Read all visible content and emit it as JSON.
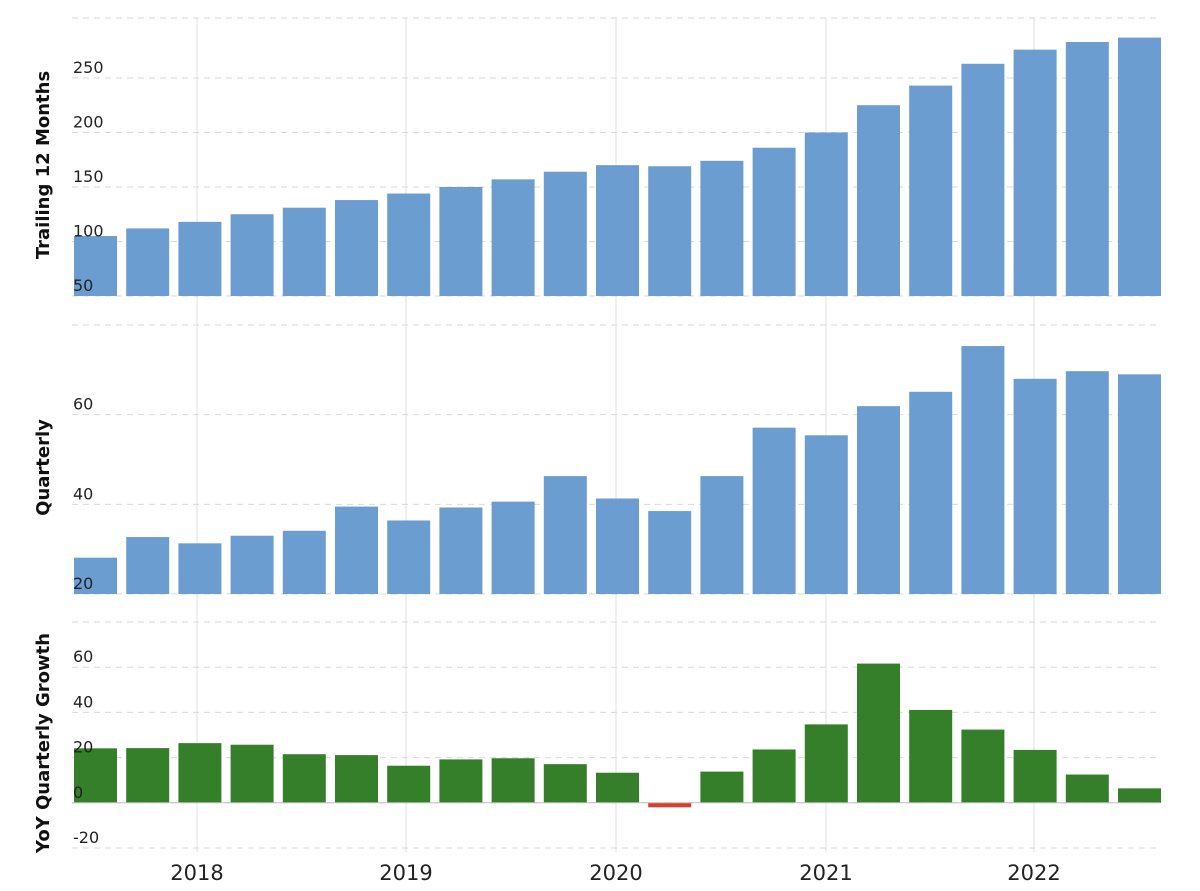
{
  "colors": {
    "primary_bar": "#6b9dd1",
    "growth_positive": "#357e2a",
    "growth_negative": "#d4402e",
    "grid": "#d9d9d9",
    "vgrid": "#e0e0e0"
  },
  "chart_data": [
    {
      "type": "bar",
      "ylabel": "Trailing 12 Months",
      "yticks": [
        50,
        100,
        150,
        200,
        250
      ],
      "ylim": [
        50,
        305
      ],
      "grid": true,
      "values": [
        105,
        112,
        118,
        125,
        131,
        138,
        144,
        150,
        157,
        164,
        170,
        169,
        174,
        186,
        200,
        225,
        243,
        263,
        276,
        283,
        287
      ]
    },
    {
      "type": "bar",
      "ylabel": "Quarterly",
      "yticks": [
        20,
        40,
        60
      ],
      "ylim": [
        20,
        80
      ],
      "grid": true,
      "values": [
        28.1,
        32.7,
        31.3,
        33.0,
        34.1,
        39.5,
        36.4,
        39.3,
        40.6,
        46.3,
        41.3,
        38.5,
        46.3,
        57.1,
        55.4,
        61.9,
        65.1,
        75.3,
        68.0,
        69.7,
        69.0
      ]
    },
    {
      "type": "bar",
      "ylabel": "YoY Quarterly Growth",
      "yticks": [
        -20,
        0,
        20,
        40,
        60
      ],
      "ylim": [
        -20,
        80
      ],
      "grid": true,
      "values": [
        24.1,
        24.2,
        26.4,
        25.7,
        21.5,
        21.1,
        16.4,
        19.2,
        19.7,
        17.1,
        13.3,
        -2.0,
        13.8,
        23.6,
        34.7,
        61.6,
        41.1,
        32.4,
        23.4,
        12.5,
        6.4
      ]
    }
  ],
  "x_axis": {
    "tick_labels": [
      "2018",
      "2019",
      "2020",
      "2021",
      "2022"
    ]
  }
}
